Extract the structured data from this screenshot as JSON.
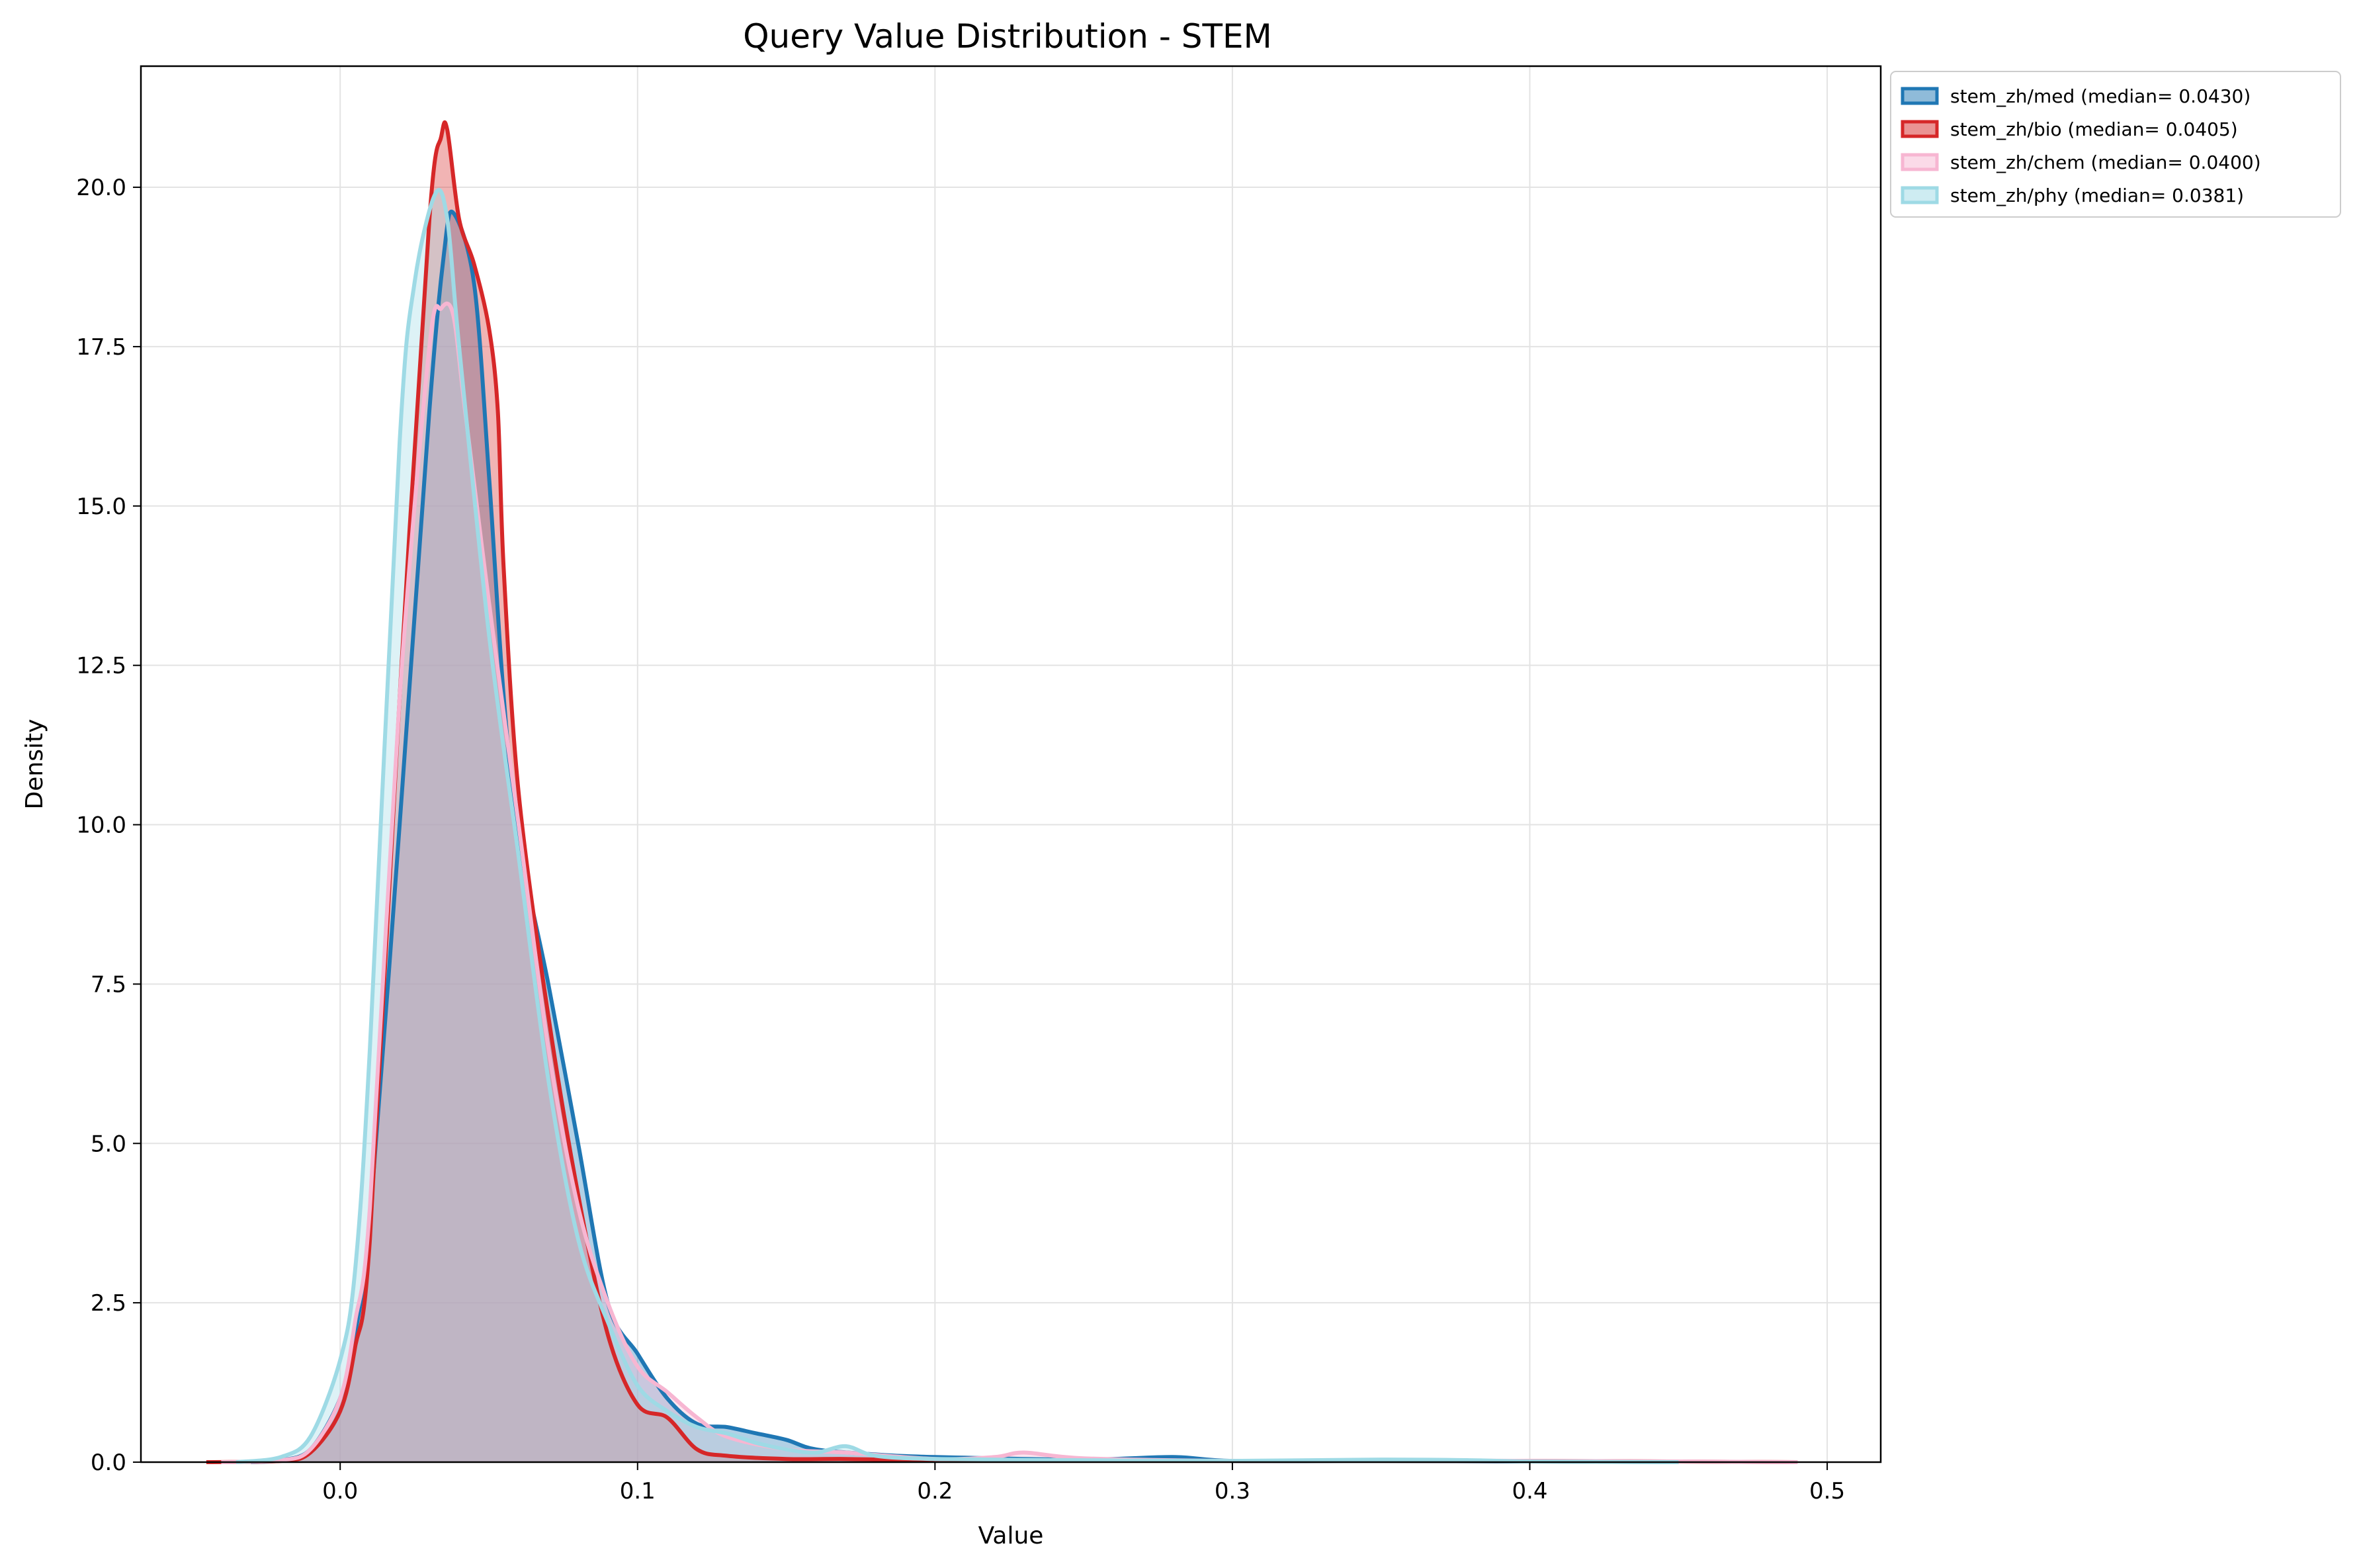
{
  "chart_data": {
    "type": "area",
    "title": "Query Value Distribution - STEM",
    "xlabel": "Value",
    "ylabel": "Density",
    "xlim": [
      -0.067,
      0.518
    ],
    "ylim": [
      0,
      21.9
    ],
    "grid": true,
    "legend_position": "outside-top-right",
    "x_ticks": [
      "0.0",
      "0.1",
      "0.2",
      "0.3",
      "0.4",
      "0.5"
    ],
    "x_tick_values": [
      0.0,
      0.1,
      0.2,
      0.3,
      0.4,
      0.5
    ],
    "y_ticks": [
      "0.0",
      "2.5",
      "5.0",
      "7.5",
      "10.0",
      "12.5",
      "15.0",
      "17.5",
      "20.0"
    ],
    "y_tick_values": [
      0,
      2.5,
      5.0,
      7.5,
      10.0,
      12.5,
      15.0,
      17.5,
      20.0
    ],
    "series": [
      {
        "name": "stem_zh/med",
        "label": "stem_zh/med (median= 0.0430)",
        "median": 0.043,
        "color": "#1f77b4",
        "points": [
          [
            -0.03,
            0
          ],
          [
            -0.02,
            0.03
          ],
          [
            -0.01,
            0.2
          ],
          [
            0.0,
            1.0
          ],
          [
            0.005,
            2.0
          ],
          [
            0.01,
            3.8
          ],
          [
            0.02,
            10.0
          ],
          [
            0.03,
            16.5
          ],
          [
            0.035,
            19.0
          ],
          [
            0.038,
            19.6
          ],
          [
            0.045,
            18.5
          ],
          [
            0.05,
            15.5
          ],
          [
            0.055,
            12.0
          ],
          [
            0.06,
            9.8
          ],
          [
            0.07,
            7.5
          ],
          [
            0.08,
            5.0
          ],
          [
            0.09,
            2.5
          ],
          [
            0.1,
            1.7
          ],
          [
            0.11,
            1.0
          ],
          [
            0.12,
            0.6
          ],
          [
            0.13,
            0.55
          ],
          [
            0.14,
            0.45
          ],
          [
            0.15,
            0.35
          ],
          [
            0.16,
            0.2
          ],
          [
            0.18,
            0.12
          ],
          [
            0.2,
            0.08
          ],
          [
            0.25,
            0.04
          ],
          [
            0.28,
            0.08
          ],
          [
            0.3,
            0.02
          ],
          [
            0.35,
            0.02
          ],
          [
            0.4,
            0.01
          ],
          [
            0.45,
            0
          ]
        ]
      },
      {
        "name": "stem_zh/bio",
        "label": "stem_zh/bio (median= 0.0405)",
        "median": 0.0405,
        "color": "#d62728",
        "points": [
          [
            -0.045,
            0
          ],
          [
            -0.02,
            0.02
          ],
          [
            -0.01,
            0.15
          ],
          [
            0.0,
            0.8
          ],
          [
            0.005,
            1.8
          ],
          [
            0.01,
            3.5
          ],
          [
            0.02,
            12.0
          ],
          [
            0.03,
            19.5
          ],
          [
            0.034,
            20.8
          ],
          [
            0.036,
            20.9
          ],
          [
            0.04,
            19.5
          ],
          [
            0.045,
            18.8
          ],
          [
            0.05,
            17.8
          ],
          [
            0.053,
            16.5
          ],
          [
            0.055,
            14.0
          ],
          [
            0.06,
            10.5
          ],
          [
            0.07,
            7.0
          ],
          [
            0.08,
            4.2
          ],
          [
            0.09,
            2.0
          ],
          [
            0.1,
            0.9
          ],
          [
            0.11,
            0.7
          ],
          [
            0.12,
            0.2
          ],
          [
            0.13,
            0.1
          ],
          [
            0.15,
            0.05
          ],
          [
            0.17,
            0.05
          ],
          [
            0.2,
            0.03
          ],
          [
            0.3,
            0.02
          ],
          [
            0.4,
            0.02
          ],
          [
            0.49,
            0
          ]
        ]
      },
      {
        "name": "stem_zh/chem",
        "label": "stem_zh/chem (median= 0.0400)",
        "median": 0.04,
        "color": "#f7b6d2",
        "points": [
          [
            -0.04,
            0
          ],
          [
            -0.02,
            0.03
          ],
          [
            -0.01,
            0.2
          ],
          [
            0.0,
            1.0
          ],
          [
            0.005,
            2.2
          ],
          [
            0.01,
            4.0
          ],
          [
            0.02,
            12.0
          ],
          [
            0.03,
            17.5
          ],
          [
            0.034,
            18.1
          ],
          [
            0.038,
            18.0
          ],
          [
            0.042,
            16.5
          ],
          [
            0.05,
            13.5
          ],
          [
            0.06,
            10.0
          ],
          [
            0.07,
            6.5
          ],
          [
            0.08,
            4.0
          ],
          [
            0.09,
            2.5
          ],
          [
            0.1,
            1.5
          ],
          [
            0.11,
            1.1
          ],
          [
            0.12,
            0.7
          ],
          [
            0.13,
            0.4
          ],
          [
            0.15,
            0.2
          ],
          [
            0.17,
            0.15
          ],
          [
            0.2,
            0.05
          ],
          [
            0.22,
            0.08
          ],
          [
            0.23,
            0.15
          ],
          [
            0.25,
            0.06
          ],
          [
            0.3,
            0.02
          ],
          [
            0.35,
            0.03
          ],
          [
            0.4,
            0.02
          ],
          [
            0.45,
            0.01
          ],
          [
            0.49,
            0
          ]
        ]
      },
      {
        "name": "stem_zh/phy",
        "label": "stem_zh/phy (median= 0.0381)",
        "median": 0.0381,
        "color": "#9edae5",
        "points": [
          [
            -0.035,
            0
          ],
          [
            -0.02,
            0.08
          ],
          [
            -0.01,
            0.4
          ],
          [
            0.0,
            1.6
          ],
          [
            0.005,
            3.0
          ],
          [
            0.01,
            6.5
          ],
          [
            0.02,
            16.0
          ],
          [
            0.025,
            18.5
          ],
          [
            0.032,
            19.9
          ],
          [
            0.036,
            19.5
          ],
          [
            0.04,
            17.5
          ],
          [
            0.05,
            13.0
          ],
          [
            0.06,
            9.5
          ],
          [
            0.07,
            6.0
          ],
          [
            0.08,
            3.5
          ],
          [
            0.09,
            2.2
          ],
          [
            0.1,
            1.2
          ],
          [
            0.11,
            0.8
          ],
          [
            0.12,
            0.55
          ],
          [
            0.13,
            0.45
          ],
          [
            0.14,
            0.3
          ],
          [
            0.15,
            0.2
          ],
          [
            0.16,
            0.15
          ],
          [
            0.17,
            0.25
          ],
          [
            0.18,
            0.1
          ],
          [
            0.2,
            0.05
          ],
          [
            0.25,
            0.03
          ],
          [
            0.3,
            0.02
          ],
          [
            0.35,
            0.04
          ],
          [
            0.38,
            0.03
          ],
          [
            0.4,
            0.01
          ],
          [
            0.45,
            0
          ]
        ]
      }
    ]
  }
}
